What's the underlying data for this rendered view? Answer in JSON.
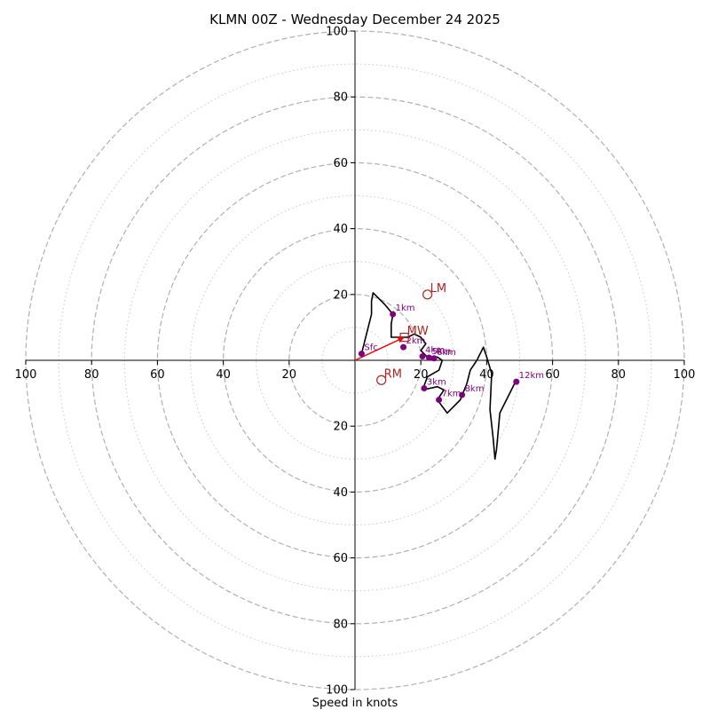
{
  "chart_data": {
    "type": "hodograph",
    "title": "KLMN 00Z - Wednesday December 24 2025",
    "xlabel": "Speed in knots",
    "range": [
      -100,
      100
    ],
    "major_rings": [
      20,
      40,
      60,
      80,
      100
    ],
    "minor_rings": [
      10,
      30,
      50,
      70,
      90
    ],
    "tick_labels": {
      "x_left": [
        "100",
        "80",
        "60",
        "40",
        "20"
      ],
      "x_right": [
        "20",
        "40",
        "60",
        "80",
        "100"
      ],
      "y_top": [
        "100",
        "80",
        "60",
        "40",
        "20"
      ],
      "y_bottom": [
        "20",
        "40",
        "60",
        "80",
        "100"
      ]
    },
    "colors": {
      "trace": "#000000",
      "height_point": "#800080",
      "height_label": "#800080",
      "motion": "#b22222",
      "vector": "#ff0000",
      "ring_major": "#b0b0b0",
      "ring_minor": "#c8c8c8"
    },
    "trace": [
      [
        2,
        2
      ],
      [
        3,
        6
      ],
      [
        5,
        14
      ],
      [
        5,
        18
      ],
      [
        5.5,
        20.5
      ],
      [
        9,
        17
      ],
      [
        11.5,
        14
      ],
      [
        11,
        11
      ],
      [
        11,
        7
      ],
      [
        14,
        7
      ],
      [
        16,
        7
      ],
      [
        18,
        8
      ],
      [
        20,
        7
      ],
      [
        21.5,
        5
      ],
      [
        20,
        3
      ],
      [
        22,
        1
      ],
      [
        24,
        1
      ],
      [
        25,
        1
      ],
      [
        26.5,
        0
      ],
      [
        25.5,
        -3
      ],
      [
        22,
        -5
      ],
      [
        20.5,
        -9
      ],
      [
        25,
        -8
      ],
      [
        27,
        -9
      ],
      [
        25,
        -12
      ],
      [
        28,
        -16
      ],
      [
        32,
        -12
      ],
      [
        34,
        -7
      ],
      [
        35,
        -3
      ],
      [
        37,
        0
      ],
      [
        39,
        4
      ],
      [
        40,
        1
      ],
      [
        41.5,
        -4
      ],
      [
        41,
        -15
      ],
      [
        42,
        -24
      ],
      [
        42.5,
        -30
      ],
      [
        43,
        -27
      ],
      [
        44,
        -16
      ],
      [
        48.5,
        -7
      ],
      [
        49,
        -6.5
      ]
    ],
    "heights": [
      {
        "label": "Sfc",
        "u": 2,
        "v": 2
      },
      {
        "label": "1km",
        "u": 11.5,
        "v": 14
      },
      {
        "label": "2km",
        "u": 14.7,
        "v": 4
      },
      {
        "label": "4km",
        "u": 20.5,
        "v": 1.2
      },
      {
        "label": "5km",
        "u": 22.5,
        "v": 0.8
      },
      {
        "label": "6km",
        "u": 24,
        "v": 0.6
      },
      {
        "label": "3km",
        "u": 21,
        "v": -8.5
      },
      {
        "label": "7km",
        "u": 25.5,
        "v": -12
      },
      {
        "label": "8km",
        "u": 32.5,
        "v": -10.5
      },
      {
        "label": "12km",
        "u": 49,
        "v": -6.5
      }
    ],
    "storm_motion": [
      {
        "label": "LM",
        "u": 22,
        "v": 20
      },
      {
        "label": "MW",
        "u": 15,
        "v": 7
      },
      {
        "label": "RM",
        "u": 8,
        "v": -6
      }
    ],
    "mean_wind_vector": {
      "u": 15,
      "v": 7
    }
  }
}
